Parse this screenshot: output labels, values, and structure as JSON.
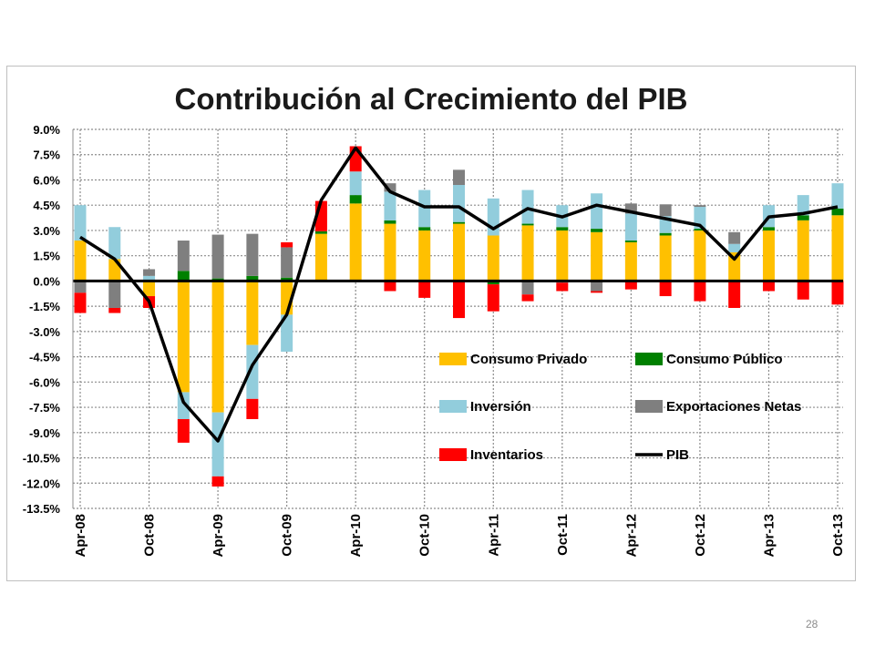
{
  "page_number": "28",
  "chart_data": {
    "type": "bar",
    "title": "Contribución al Crecimiento del PIB",
    "xlabel": "",
    "ylabel": "",
    "ylim": [
      -13.5,
      9.0
    ],
    "ytick_step": 1.5,
    "grid": true,
    "legend_position": "bottom-right",
    "x_tick_labels": [
      "Apr-08",
      "Oct-08",
      "Apr-09",
      "Oct-09",
      "Apr-10",
      "Oct-10",
      "Apr-11",
      "Oct-11",
      "Apr-12",
      "Oct-12",
      "Apr-13",
      "Oct-13"
    ],
    "categories": [
      "Apr-08",
      "Jul-08",
      "Oct-08",
      "Jan-09",
      "Apr-09",
      "Jul-09",
      "Oct-09",
      "Jan-10",
      "Apr-10",
      "Jul-10",
      "Oct-10",
      "Jan-11",
      "Apr-11",
      "Jul-11",
      "Oct-11",
      "Jan-12",
      "Apr-12",
      "Jul-12",
      "Oct-12",
      "Jan-13",
      "Apr-13",
      "Jul-13",
      "Oct-13"
    ],
    "series": [
      {
        "name": "Consumo Privado",
        "kind": "bar",
        "color": "#ffc000",
        "values": [
          2.4,
          1.3,
          -0.9,
          -6.6,
          -7.8,
          -3.8,
          -2.0,
          2.8,
          4.6,
          3.4,
          3.0,
          3.4,
          2.7,
          3.3,
          3.0,
          2.9,
          2.3,
          2.7,
          3.0,
          1.7,
          3.0,
          3.6,
          3.9
        ]
      },
      {
        "name": "Consumo Público",
        "kind": "bar",
        "color": "#008000",
        "values": [
          0.0,
          0.0,
          0.0,
          0.6,
          0.15,
          0.3,
          0.2,
          0.15,
          0.5,
          0.2,
          0.2,
          0.1,
          -0.2,
          0.1,
          0.2,
          0.2,
          0.1,
          0.15,
          0.1,
          0.0,
          0.2,
          0.3,
          0.4
        ]
      },
      {
        "name": "Inversión",
        "kind": "bar",
        "color": "#92cddc",
        "values": [
          2.1,
          1.9,
          0.3,
          -1.6,
          -3.8,
          -3.2,
          -2.2,
          0.0,
          1.4,
          1.7,
          2.2,
          2.2,
          2.2,
          2.0,
          1.3,
          2.1,
          1.6,
          1.0,
          1.3,
          0.5,
          1.3,
          1.2,
          1.5
        ]
      },
      {
        "name": "Exportaciones Netas",
        "kind": "bar",
        "color": "#7f7f7f",
        "values": [
          -0.7,
          -1.6,
          0.4,
          1.8,
          2.6,
          2.5,
          1.8,
          0.0,
          0.0,
          0.5,
          0.0,
          0.9,
          0.0,
          -0.8,
          -0.1,
          -0.6,
          0.6,
          0.7,
          0.1,
          0.7,
          0.0,
          0.0,
          0.0
        ]
      },
      {
        "name": "Inventarios",
        "kind": "bar",
        "color": "#ff0000",
        "values": [
          -1.2,
          -0.3,
          -0.7,
          -1.4,
          -0.6,
          -1.2,
          0.3,
          1.8,
          1.5,
          -0.6,
          -1.0,
          -2.2,
          -1.6,
          -0.4,
          -0.5,
          -0.1,
          -0.5,
          -0.9,
          -1.2,
          -1.6,
          -0.6,
          -1.1,
          -1.4
        ]
      },
      {
        "name": "PIB",
        "kind": "line",
        "color": "#000000",
        "values": [
          2.6,
          1.3,
          -1.2,
          -7.2,
          -9.5,
          -5.0,
          -2.0,
          4.8,
          7.9,
          5.3,
          4.4,
          4.4,
          3.1,
          4.3,
          3.8,
          4.5,
          4.1,
          3.7,
          3.3,
          1.3,
          3.8,
          4.0,
          4.4
        ]
      }
    ]
  }
}
